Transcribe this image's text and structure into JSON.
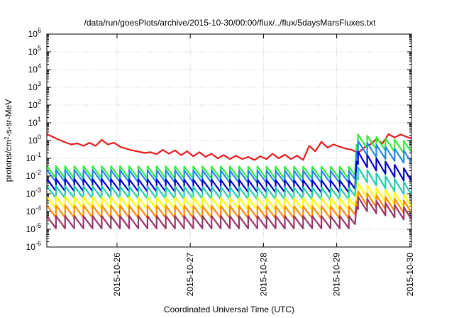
{
  "chart_data": {
    "type": "line",
    "title": "/data/run/goesPlots/archive/2015-10-30/00:00/flux/../flux/5daysMarsFluxes.txt",
    "xlabel": "Coordinated Universal Time (UTC)",
    "ylabel": "protons/cm²-s-sr-MeV",
    "xlim": [
      "2015-10-25T01:00",
      "2015-10-30T00:30"
    ],
    "ylim": [
      1e-06,
      1000000.0
    ],
    "yscale": "log",
    "grid": true,
    "x_tick_labels": [
      "2015-10-26",
      "2015-10-27",
      "2015-10-28",
      "2015-10-29",
      "2015-10-30"
    ],
    "x_ticks": [
      "2015-10-26T00:00",
      "2015-10-27T00:00",
      "2015-10-28T00:00",
      "2015-10-29T00:00",
      "2015-10-30T00:00"
    ],
    "y_ticks": [
      {
        "base": "10",
        "exp": "-6"
      },
      {
        "base": "10",
        "exp": "-5"
      },
      {
        "base": "10",
        "exp": "-4"
      },
      {
        "base": "10",
        "exp": "-3"
      },
      {
        "base": "10",
        "exp": "-2"
      },
      {
        "base": "10",
        "exp": "-1"
      },
      {
        "base": "10",
        "exp": "0"
      },
      {
        "base": "10",
        "exp": "1"
      },
      {
        "base": "10",
        "exp": "2"
      },
      {
        "base": "10",
        "exp": "3"
      },
      {
        "base": "10",
        "exp": "4"
      },
      {
        "base": "10",
        "exp": "5"
      },
      {
        "base": "10",
        "exp": "6"
      }
    ],
    "series": [
      {
        "color": "#e41a1c",
        "values": [
          [
            "2015-10-25T01:00",
            2.3
          ],
          [
            "2015-10-25T03:00",
            1.6
          ],
          [
            "2015-10-25T05:00",
            1.1
          ],
          [
            "2015-10-25T07:00",
            0.8
          ],
          [
            "2015-10-25T09:00",
            0.6
          ],
          [
            "2015-10-25T11:00",
            0.7
          ],
          [
            "2015-10-25T13:00",
            0.5
          ],
          [
            "2015-10-25T15:00",
            0.75
          ],
          [
            "2015-10-25T17:00",
            0.5
          ],
          [
            "2015-10-25T19:00",
            1.1
          ],
          [
            "2015-10-25T21:00",
            0.6
          ],
          [
            "2015-10-25T23:00",
            0.75
          ],
          [
            "2015-10-26T01:00",
            0.45
          ],
          [
            "2015-10-26T03:00",
            0.35
          ],
          [
            "2015-10-26T05:00",
            0.28
          ],
          [
            "2015-10-26T07:00",
            0.24
          ],
          [
            "2015-10-26T09:00",
            0.2
          ],
          [
            "2015-10-26T11:00",
            0.22
          ],
          [
            "2015-10-26T13:00",
            0.17
          ],
          [
            "2015-10-26T15:00",
            0.3
          ],
          [
            "2015-10-26T17:00",
            0.18
          ],
          [
            "2015-10-26T19:00",
            0.28
          ],
          [
            "2015-10-26T21:00",
            0.15
          ],
          [
            "2015-10-26T23:00",
            0.25
          ],
          [
            "2015-10-27T01:00",
            0.13
          ],
          [
            "2015-10-27T03:00",
            0.22
          ],
          [
            "2015-10-27T05:00",
            0.12
          ],
          [
            "2015-10-27T07:00",
            0.18
          ],
          [
            "2015-10-27T09:00",
            0.1
          ],
          [
            "2015-10-27T11:00",
            0.15
          ],
          [
            "2015-10-27T13:00",
            0.09
          ],
          [
            "2015-10-27T15:00",
            0.14
          ],
          [
            "2015-10-27T17:00",
            0.09
          ],
          [
            "2015-10-27T19:00",
            0.12
          ],
          [
            "2015-10-27T21:00",
            0.08
          ],
          [
            "2015-10-27T23:00",
            0.13
          ],
          [
            "2015-10-28T01:00",
            0.09
          ],
          [
            "2015-10-28T03:00",
            0.18
          ],
          [
            "2015-10-28T05:00",
            0.1
          ],
          [
            "2015-10-28T07:00",
            0.16
          ],
          [
            "2015-10-28T09:00",
            0.09
          ],
          [
            "2015-10-28T11:00",
            0.14
          ],
          [
            "2015-10-28T13:00",
            0.08
          ],
          [
            "2015-10-28T15:00",
            0.5
          ],
          [
            "2015-10-28T17:00",
            0.25
          ],
          [
            "2015-10-28T19:00",
            0.85
          ],
          [
            "2015-10-28T21:00",
            0.4
          ],
          [
            "2015-10-28T23:00",
            0.6
          ],
          [
            "2015-10-29T01:00",
            0.45
          ],
          [
            "2015-10-29T03:00",
            0.35
          ],
          [
            "2015-10-29T05:00",
            0.3
          ],
          [
            "2015-10-29T07:00",
            0.2
          ],
          [
            "2015-10-29T09:00",
            0.4
          ],
          [
            "2015-10-29T11:00",
            0.6
          ],
          [
            "2015-10-29T13:00",
            1.2
          ],
          [
            "2015-10-29T15:00",
            0.7
          ],
          [
            "2015-10-29T17:00",
            2.3
          ],
          [
            "2015-10-29T19:00",
            1.5
          ],
          [
            "2015-10-29T21:00",
            2.2
          ],
          [
            "2015-10-29T23:00",
            1.6
          ],
          [
            "2015-10-30T00:30",
            1.3
          ]
        ]
      },
      {
        "color": "#33ee33",
        "base": [
          [
            "2015-10-25T01:00",
            0.013
          ],
          [
            "2015-10-29T06:00",
            0.012
          ],
          [
            "2015-10-29T06:30",
            0.8
          ],
          [
            "2015-10-30T00:30",
            0.3
          ]
        ]
      },
      {
        "color": "#2288ee",
        "base": [
          [
            "2015-10-25T01:00",
            0.008
          ],
          [
            "2015-10-29T06:00",
            0.007
          ],
          [
            "2015-10-29T06:30",
            0.35
          ],
          [
            "2015-10-30T00:30",
            0.08
          ]
        ]
      },
      {
        "color": "#0000cc",
        "base": [
          [
            "2015-10-25T01:00",
            0.0025
          ],
          [
            "2015-10-29T06:00",
            0.002
          ],
          [
            "2015-10-29T06:30",
            0.09
          ],
          [
            "2015-10-30T00:30",
            0.007
          ]
        ]
      },
      {
        "color": "#22ccaa",
        "base": [
          [
            "2015-10-25T01:00",
            0.001
          ],
          [
            "2015-10-29T06:00",
            0.0008
          ],
          [
            "2015-10-29T06:30",
            0.012
          ],
          [
            "2015-10-30T00:30",
            0.0012
          ]
        ]
      },
      {
        "color": "#ffff00",
        "base": [
          [
            "2015-10-25T01:00",
            0.00025
          ],
          [
            "2015-10-29T06:00",
            0.0002
          ],
          [
            "2015-10-29T06:30",
            0.0015
          ],
          [
            "2015-10-30T00:30",
            0.00025
          ]
        ]
      },
      {
        "color": "#ff8800",
        "base": [
          [
            "2015-10-25T01:00",
            8e-05
          ],
          [
            "2015-10-29T06:00",
            7e-05
          ],
          [
            "2015-10-29T06:30",
            0.0005
          ],
          [
            "2015-10-30T00:30",
            0.00012
          ]
        ]
      },
      {
        "color": "#993366",
        "base": [
          [
            "2015-10-25T01:00",
            2e-05
          ],
          [
            "2015-10-29T06:00",
            2e-05
          ],
          [
            "2015-10-29T06:30",
            0.00025
          ],
          [
            "2015-10-30T00:30",
            5e-05
          ]
        ]
      }
    ]
  }
}
